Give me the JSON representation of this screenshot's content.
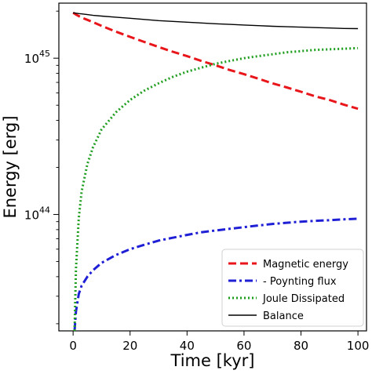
{
  "chart_data": {
    "type": "line",
    "xlabel": "Time [kyr]",
    "ylabel": "Energy [erg]",
    "xlim": [
      -5,
      103
    ],
    "ylim": [
      1.8e+43,
      2.25e+45
    ],
    "yscale": "log",
    "xticks": [
      0,
      20,
      40,
      60,
      80,
      100
    ],
    "yticks": [
      {
        "value": 1e+44,
        "base": "10",
        "exp": "44"
      },
      {
        "value": 1e+45,
        "base": "10",
        "exp": "45"
      }
    ],
    "grid": false,
    "legend_position": "bottom-right",
    "x": [
      0,
      0.5,
      1,
      2,
      3,
      5,
      7,
      10,
      15,
      20,
      25,
      30,
      35,
      40,
      45,
      50,
      55,
      60,
      65,
      70,
      75,
      80,
      85,
      90,
      95,
      100
    ],
    "series": [
      {
        "name": "Magnetic energy",
        "color": "#e8151a",
        "style": "dashed",
        "values": [
          1.95e+45,
          1.93e+45,
          1.9e+45,
          1.86e+45,
          1.82e+45,
          1.76e+45,
          1.7e+45,
          1.61e+45,
          1.48e+45,
          1.37e+45,
          1.27e+45,
          1.18e+45,
          1.1e+45,
          1.03e+45,
          9.6e+44,
          9e+44,
          8.4e+44,
          7.9e+44,
          7.4e+44,
          6.9e+44,
          6.5e+44,
          6.1e+44,
          5.7e+44,
          5.4e+44,
          5.05e+44,
          4.75e+44
        ]
      },
      {
        "name": "- Poynting flux",
        "color": "#1f1fd6",
        "style": "dashdot",
        "values": [
          null,
          1.8e+43,
          2.4e+43,
          3.1e+43,
          3.5e+43,
          4e+43,
          4.4e+43,
          4.9e+43,
          5.5e+43,
          6e+43,
          6.4e+43,
          6.8e+43,
          7.1e+43,
          7.4e+43,
          7.7e+43,
          7.9e+43,
          8.1e+43,
          8.3e+43,
          8.5e+43,
          8.7e+43,
          8.85e+43,
          9e+43,
          9.1e+43,
          9.2e+43,
          9.3e+43,
          9.4e+43
        ]
      },
      {
        "name": "Joule Dissipated",
        "color": "#1e9e1e",
        "style": "dotted",
        "values": [
          null,
          1.8e+43,
          4.5e+43,
          9.5e+43,
          1.4e+44,
          2.1e+44,
          2.7e+44,
          3.5e+44,
          4.5e+44,
          5.4e+44,
          6.2e+44,
          6.9e+44,
          7.6e+44,
          8.2e+44,
          8.7e+44,
          9.2e+44,
          9.6e+44,
          1e+45,
          1.03e+45,
          1.06e+45,
          1.09e+45,
          1.11e+45,
          1.13e+45,
          1.14e+45,
          1.15e+45,
          1.16e+45
        ]
      },
      {
        "name": "Balance",
        "color": "#000000",
        "style": "solid",
        "values": [
          1.95e+45,
          1.95e+45,
          1.94e+45,
          1.93e+45,
          1.92e+45,
          1.9e+45,
          1.88e+45,
          1.86e+45,
          1.83e+45,
          1.8e+45,
          1.77e+45,
          1.74e+45,
          1.72e+45,
          1.7e+45,
          1.68e+45,
          1.66e+45,
          1.645e+45,
          1.63e+45,
          1.615e+45,
          1.6e+45,
          1.59e+45,
          1.58e+45,
          1.57e+45,
          1.56e+45,
          1.55e+45,
          1.545e+45
        ]
      }
    ]
  }
}
